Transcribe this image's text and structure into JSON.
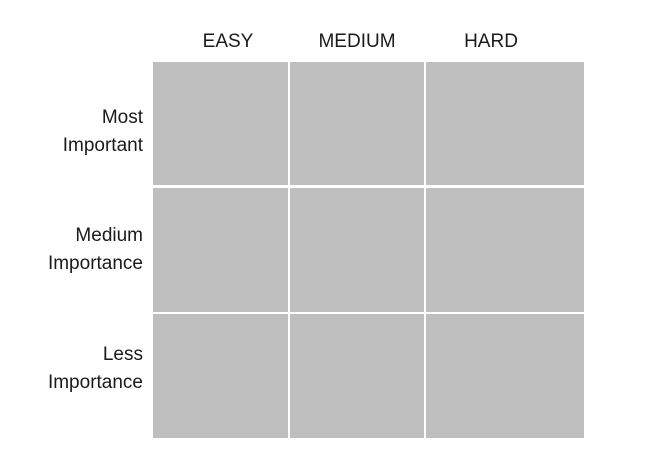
{
  "columns": [
    {
      "label": "EASY"
    },
    {
      "label": "MEDIUM"
    },
    {
      "label": "HARD"
    }
  ],
  "rows": [
    {
      "line1": "Most",
      "line2": "Important"
    },
    {
      "line1": "Medium",
      "line2": "Importance"
    },
    {
      "line1": "Less",
      "line2": "Importance"
    }
  ],
  "cell_color": "#bfbfbf",
  "divider_color": "#ffffff"
}
